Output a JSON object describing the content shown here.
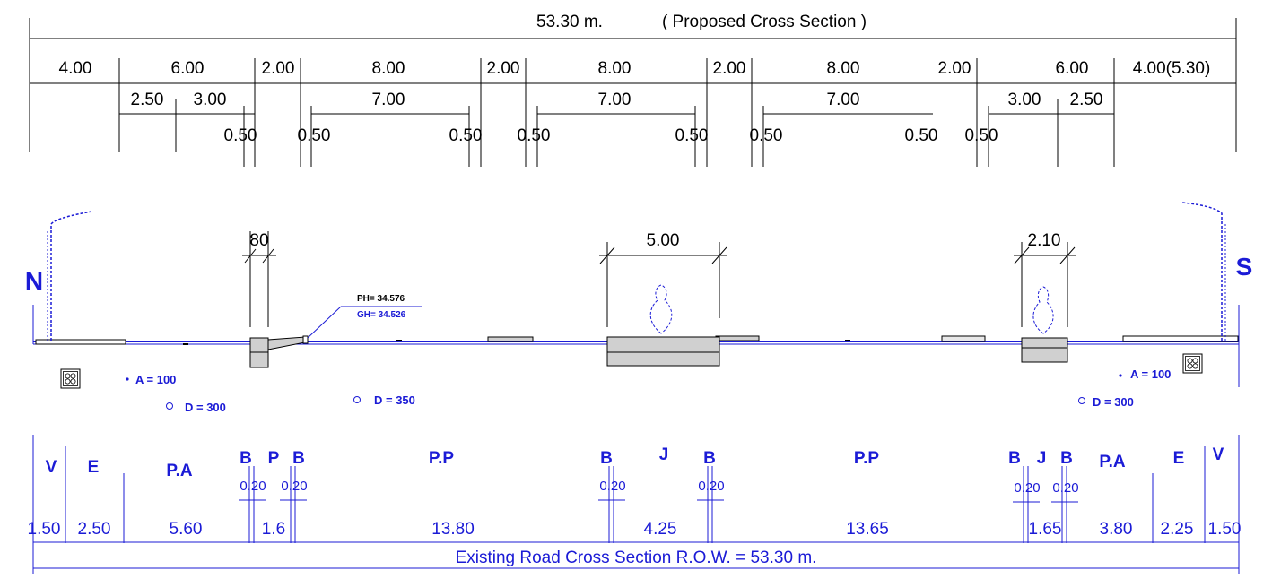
{
  "proposed": {
    "total": "53.30 m.",
    "caption": "( Proposed Cross Section )",
    "row1": [
      "4.00",
      "6.00",
      "2.00",
      "8.00",
      "2.00",
      "8.00",
      "2.00",
      "8.00",
      "2.00",
      "6.00",
      "4.00(5.30)"
    ],
    "row2": [
      "2.50",
      "3.00",
      "7.00",
      "7.00",
      "7.00",
      "3.00",
      "2.50"
    ],
    "row3": [
      "0.50",
      "0.50",
      "0.50",
      "0.50",
      "0.50",
      "0.50",
      "0.50",
      "0.50"
    ]
  },
  "section": {
    "north": "N",
    "south": "S",
    "dims": [
      "80",
      "5.00",
      "2.10"
    ],
    "ph": "PH= 34.576",
    "gh": "GH= 34.526",
    "utilities": [
      "A = 100",
      "D = 300",
      "D = 350",
      "A = 100",
      "D = 300"
    ]
  },
  "existing": {
    "letters": [
      "V",
      "E",
      "P.A",
      "B",
      "P",
      "B",
      "P.P",
      "B",
      "J",
      "B",
      "P.P",
      "B",
      "J",
      "B",
      "P.A",
      "E",
      "V"
    ],
    "small": [
      "0.20",
      "0.20",
      "0.20",
      "0.20",
      "0.20",
      "0.20"
    ],
    "widths": [
      "1.50",
      "2.50",
      "5.60",
      "1.6",
      "13.80",
      "4.25",
      "13.65",
      "1.65",
      "3.80",
      "2.25",
      "1.50"
    ],
    "row_label": "Existing Road Cross Section R.O.W. = 53.30 m."
  },
  "colors": {
    "ink": "#000000",
    "blue": "#1b1bd6",
    "fill": "#d0d0d0"
  }
}
